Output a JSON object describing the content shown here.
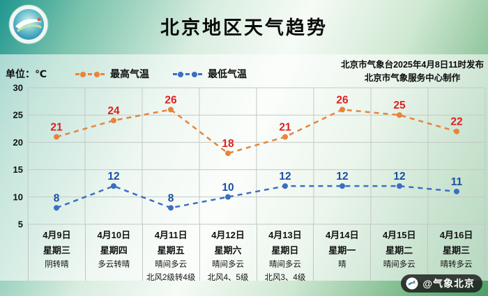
{
  "header": {
    "title": "北京地区天气趋势"
  },
  "meta": {
    "unit_label": "单位：℃",
    "issued_line1": "北京市气象台2025年4月8日11时发布",
    "issued_line2": "北京市气象服务中心制作"
  },
  "watermark": {
    "handle": "@气象北京"
  },
  "chart_data": {
    "type": "line",
    "title": "北京地区天气趋势",
    "categories": [
      "4月9日",
      "4月10日",
      "4月11日",
      "4月12日",
      "4月13日",
      "4月14日",
      "4月15日",
      "4月16日"
    ],
    "weekdays": [
      "星期三",
      "星期四",
      "星期五",
      "星期六",
      "星期日",
      "星期一",
      "星期二",
      "星期三"
    ],
    "weather": [
      [
        "阴转晴"
      ],
      [
        "多云转晴"
      ],
      [
        "晴间多云",
        "北风2级转4级"
      ],
      [
        "晴间多云",
        "北风4、5级"
      ],
      [
        "晴间多云",
        "北风3、4级"
      ],
      [
        "晴"
      ],
      [
        "晴间多云"
      ],
      [
        "晴转多云"
      ]
    ],
    "series": [
      {
        "name": "最高气温",
        "color": "#e8833a",
        "label_color": "#e01f1f",
        "values": [
          21,
          24,
          26,
          18,
          21,
          26,
          25,
          22
        ]
      },
      {
        "name": "最低气温",
        "color": "#3a6fc4",
        "label_color": "#1a4fa0",
        "values": [
          8,
          12,
          8,
          10,
          12,
          12,
          12,
          11
        ]
      }
    ],
    "ylabel": "℃",
    "ylim": [
      5,
      30
    ],
    "yticks": [
      5,
      10,
      15,
      20,
      25,
      30
    ],
    "grid": true,
    "legend_position": "top",
    "line_style": "dashed"
  }
}
